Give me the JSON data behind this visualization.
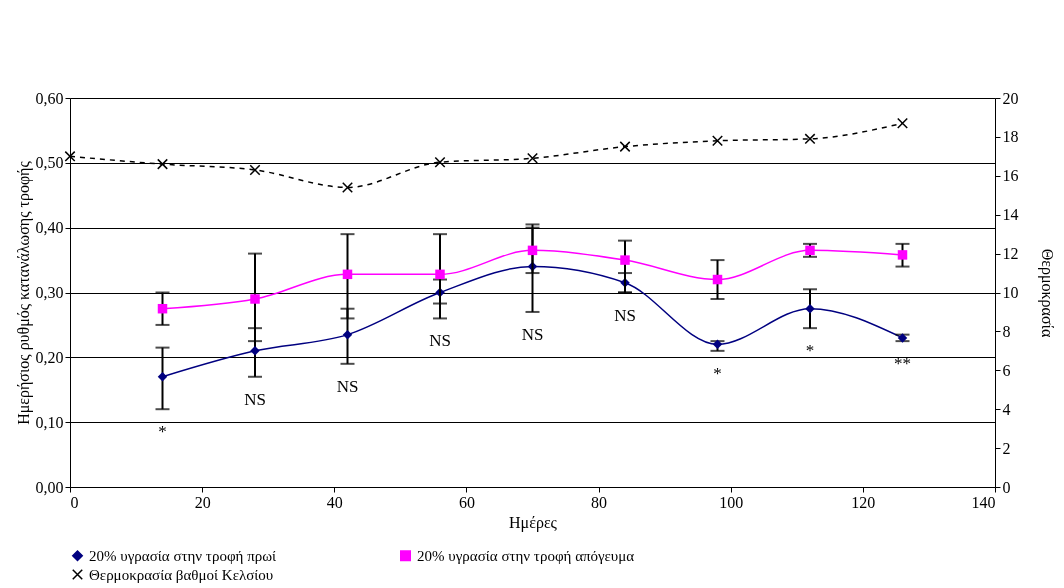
{
  "chart_data": {
    "type": "line",
    "xlabel": "Ημέρες",
    "ylabel": "Ημερήσιος ρυθμός κατανάλωσης τροφής",
    "y2label": "Θερμοκρασία",
    "x": [
      14,
      28,
      42,
      56,
      70,
      84,
      98,
      112,
      126
    ],
    "series": [
      {
        "name": "20% υγρασία στην τροφή πρωί",
        "color": "#000080",
        "marker": "diamond",
        "line_style": "solid",
        "values": [
          0.17,
          0.21,
          0.235,
          0.3,
          0.34,
          0.315,
          0.22,
          0.275,
          0.23
        ],
        "errors": [
          [
            0.12,
            0.215
          ],
          [
            0.17,
            0.245
          ],
          [
            0.19,
            0.275
          ],
          [
            0.26,
            0.32
          ],
          [
            0.27,
            0.4
          ],
          [
            0.3,
            0.33
          ],
          [
            0.21,
            0.225
          ],
          [
            0.245,
            0.305
          ],
          [
            0.225,
            0.235
          ]
        ]
      },
      {
        "name": "20% υγρασία στην τροφή απόγευμα",
        "color": "#ff00ff",
        "marker": "square",
        "line_style": "solid",
        "values": [
          0.275,
          0.29,
          0.328,
          0.328,
          0.365,
          0.35,
          0.32,
          0.365,
          0.358
        ],
        "errors": [
          [
            0.25,
            0.3
          ],
          [
            0.225,
            0.36
          ],
          [
            0.26,
            0.39
          ],
          [
            0.283,
            0.39
          ],
          [
            0.33,
            0.405
          ],
          [
            0.3,
            0.38
          ],
          [
            0.29,
            0.35
          ],
          [
            0.355,
            0.375
          ],
          [
            0.34,
            0.375
          ]
        ]
      },
      {
        "name": "Θερμοκρασία βαθμοί Κελσίου",
        "color": "#000000",
        "marker": "cross",
        "line_style": "dashed",
        "axis": "y2",
        "x": [
          0,
          14,
          28,
          42,
          56,
          70,
          84,
          98,
          112,
          126
        ],
        "values": [
          17.0,
          16.6,
          16.3,
          15.4,
          16.7,
          16.9,
          17.5,
          17.8,
          17.9,
          18.7
        ]
      }
    ],
    "xlim": [
      0,
      140
    ],
    "xticks": [
      0,
      20,
      40,
      60,
      80,
      100,
      120,
      140
    ],
    "ylim": [
      0,
      0.6
    ],
    "yticks": [
      {
        "value": 0,
        "label": "0,00"
      },
      {
        "value": 0.1,
        "label": "0,10"
      },
      {
        "value": 0.2,
        "label": "0,20"
      },
      {
        "value": 0.3,
        "label": "0,30"
      },
      {
        "value": 0.4,
        "label": "0,40"
      },
      {
        "value": 0.5,
        "label": "0,50"
      },
      {
        "value": 0.6,
        "label": "0,60"
      }
    ],
    "y2lim": [
      0,
      20
    ],
    "y2ticks": [
      0,
      2,
      4,
      6,
      8,
      10,
      12,
      14,
      16,
      18,
      20
    ],
    "grid": "y",
    "legend": "bottom",
    "annotations": [
      {
        "text": "*",
        "x": 14,
        "y": 0.17
      },
      {
        "text": "NS",
        "x": 28,
        "y": 0.21
      },
      {
        "text": "NS",
        "x": 42,
        "y": 0.235
      },
      {
        "text": "NS",
        "x": 56,
        "y": 0.3
      },
      {
        "text": "NS",
        "x": 70,
        "y": 0.27
      },
      {
        "text": "NS",
        "x": 84,
        "y": 0.315
      },
      {
        "text": "*",
        "x": 98,
        "y": 0.22
      },
      {
        "text": "*",
        "x": 112,
        "y": 0.275
      },
      {
        "text": "**",
        "x": 126,
        "y": 0.23
      }
    ]
  }
}
